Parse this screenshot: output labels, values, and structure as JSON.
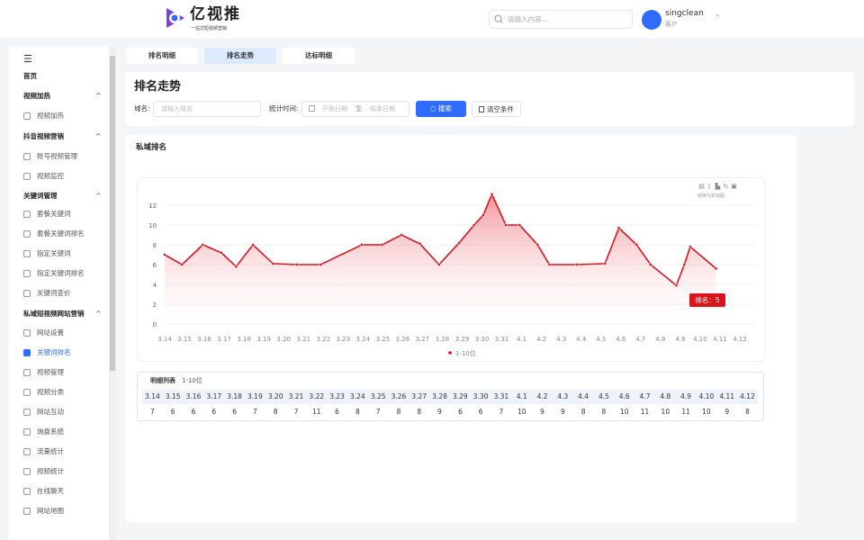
{
  "header": {
    "logo": "亿视推",
    "logo_sub": "一站式短视频营销",
    "search_placeholder": "请输入内容...",
    "user_name": "singclean",
    "user_role": "客户"
  },
  "sidebar": {
    "items": [
      {
        "label": "首页",
        "type": "top"
      },
      {
        "label": "视频加热",
        "type": "group"
      },
      {
        "label": "视频加热",
        "type": "sub"
      },
      {
        "label": "抖音视频营销",
        "type": "group"
      },
      {
        "label": "账号视频管理",
        "type": "sub"
      },
      {
        "label": "视频监控",
        "type": "sub"
      },
      {
        "label": "关键词管理",
        "type": "group"
      },
      {
        "label": "套餐关键词",
        "type": "sub"
      },
      {
        "label": "套餐关键词排名",
        "type": "sub"
      },
      {
        "label": "指定关键词",
        "type": "sub"
      },
      {
        "label": "指定关键词排名",
        "type": "sub"
      },
      {
        "label": "关键词查价",
        "type": "sub"
      },
      {
        "label": "私域短视频网站营销",
        "type": "group"
      },
      {
        "label": "网站设置",
        "type": "sub"
      },
      {
        "label": "关键词排名",
        "type": "sub",
        "active": true
      },
      {
        "label": "视频管理",
        "type": "sub"
      },
      {
        "label": "视频分类",
        "type": "sub"
      },
      {
        "label": "网站互动",
        "type": "sub"
      },
      {
        "label": "询盘系统",
        "type": "sub"
      },
      {
        "label": "流量统计",
        "type": "sub"
      },
      {
        "label": "视频统计",
        "type": "sub"
      },
      {
        "label": "在线聊天",
        "type": "sub"
      },
      {
        "label": "网站地图",
        "type": "sub"
      }
    ]
  },
  "tabs": [
    {
      "label": "排名明细"
    },
    {
      "label": "排名走势",
      "active": true
    },
    {
      "label": "达标明细"
    }
  ],
  "filter": {
    "title": "排名走势",
    "domain_label": "域名:",
    "domain_placeholder": "请输入域名",
    "time_label": "统计时间:",
    "start_placeholder": "开始日期",
    "to": "至",
    "end_placeholder": "结束日期",
    "search_button": "搜索",
    "clear_button": "清空条件"
  },
  "chart_card": {
    "title": "私域排名",
    "toolbar_hint": "转换为折线图",
    "tooltip": "排名：5"
  },
  "chart_data": {
    "type": "area",
    "color": "#d9141c",
    "x_labels": [
      "3.14",
      "3.15",
      "3.16",
      "3.17",
      "3.18",
      "3.19",
      "3.20",
      "3.21",
      "3.22",
      "3.23",
      "3.24",
      "3.25",
      "3.26",
      "3.27",
      "3.28",
      "3.29",
      "3.30",
      "3.31",
      "4.1",
      "4.2",
      "4.3",
      "4.4",
      "4.5",
      "4.6",
      "4.7",
      "4.8",
      "4.9",
      "4.10",
      "4.11",
      "4.12"
    ],
    "y_ticks": [
      0,
      2,
      4,
      6,
      8,
      10,
      12
    ],
    "ylim": [
      0,
      13
    ],
    "series": [
      {
        "name": "1-10位",
        "points": [
          [
            0,
            7
          ],
          [
            0.87,
            6
          ],
          [
            1.92,
            8
          ],
          [
            2.85,
            7.2
          ],
          [
            3.6,
            5.8
          ],
          [
            4.45,
            8
          ],
          [
            5.46,
            6.1
          ],
          [
            6.66,
            6
          ],
          [
            7.86,
            6
          ],
          [
            9.94,
            8
          ],
          [
            10.97,
            8
          ],
          [
            11.94,
            9
          ],
          [
            12.87,
            8.1
          ],
          [
            13.83,
            6
          ],
          [
            14.85,
            8.2
          ],
          [
            15.6,
            10
          ],
          [
            16.06,
            11
          ],
          [
            16.5,
            13.1
          ],
          [
            17.2,
            10
          ],
          [
            17.9,
            10
          ],
          [
            18.8,
            8
          ],
          [
            19.4,
            6
          ],
          [
            20.8,
            6
          ],
          [
            22.2,
            6.1
          ],
          [
            22.9,
            9.7
          ],
          [
            23.8,
            8
          ],
          [
            24.5,
            6
          ],
          [
            25.8,
            3.9
          ],
          [
            26.2,
            6
          ],
          [
            26.5,
            7.8
          ],
          [
            27.8,
            5.6
          ]
        ]
      }
    ],
    "legend": "bottom-center",
    "grid": true
  },
  "table": {
    "title": "明细列表",
    "subtitle": "1-10位",
    "dates": [
      "3.14",
      "3.15",
      "3.16",
      "3.17",
      "3.18",
      "3.19",
      "3.20",
      "3.21",
      "3.22",
      "3.23",
      "3.24",
      "3.25",
      "3.26",
      "3.27",
      "3.28",
      "3.29",
      "3.30",
      "3.31",
      "4.1",
      "4.2",
      "4.3",
      "4.4",
      "4.5",
      "4.6",
      "4.7",
      "4.8",
      "4.9",
      "4.10",
      "4.11",
      "4.12"
    ],
    "values": [
      "7",
      "6",
      "6",
      "6",
      "6",
      "7",
      "8",
      "7",
      "11",
      "6",
      "8",
      "7",
      "8",
      "8",
      "9",
      "6",
      "6",
      "7",
      "10",
      "9",
      "9",
      "8",
      "8",
      "10",
      "11",
      "10",
      "11",
      "10",
      "9",
      "8"
    ]
  }
}
